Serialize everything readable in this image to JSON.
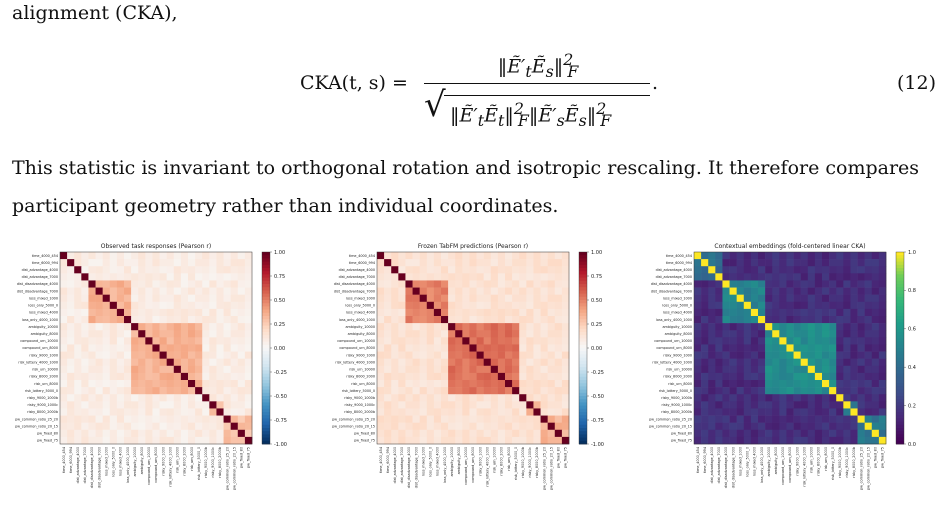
{
  "paragraph_top": "alignment (CKA),",
  "equation": {
    "lhs": "CKA(t, s) =",
    "numerator": "‖Ẽ′ₜẼₛ‖²_F",
    "denominator": "‖Ẽ′ₜẼₜ‖²_F ‖Ẽ′ₛẼₛ‖²_F",
    "number": "(12)"
  },
  "paragraph_lines": [
    "This statistic is invariant to orthogonal rotation and isotropic rescaling. It therefore compares",
    "participant geometry rather than individual coordinates."
  ],
  "labels": [
    "time_4000_454",
    "time_6000_994",
    "dist_advantage_4000",
    "dist_advantage_7000",
    "dist_disadvantage_4000",
    "dist_disadvantage_7000",
    "loss_mixed_1000",
    "loss_only_5000_0",
    "loss_mixed_4000",
    "loss_only_4000_1000",
    "ambiguity_10000",
    "ambiguity_8000",
    "compound_urn_10000",
    "compound_urn_8000",
    "risky_9000_1000",
    "risk_lottery_4000_1000",
    "risk_urn_10000",
    "risky_8000_2000",
    "risk_urn_8000",
    "risk_lottery_5000_0",
    "risky_9000_1000b",
    "risky_9000_1000c",
    "risky_8000_2000b",
    "pw_common_ratio_25_20",
    "pw_common_ratio_20_15",
    "pw_fixed_80",
    "pw_fixed_75"
  ],
  "panels": [
    {
      "title": "Observed task responses (Pearson r)",
      "colormap": "RdBu_r",
      "vmin": -1.0,
      "ticks": [
        "1.00",
        "0.75",
        "0.50",
        "0.25",
        "0.00",
        "-0.25",
        "-0.50",
        "-0.75",
        "-1.00"
      ]
    },
    {
      "title": "Frozen TabFM predictions (Pearson r)",
      "colormap": "RdBu_r",
      "vmin": -1.0,
      "ticks": [
        "1.00",
        "0.75",
        "0.50",
        "0.25",
        "0.00",
        "-0.25",
        "-0.50",
        "-0.75",
        "-1.00"
      ]
    },
    {
      "title": "Contextual embeddings (fold-centered linear CKA)",
      "colormap": "viridis",
      "vmin": 0.0,
      "ticks": [
        "1.0",
        "0.8",
        "0.6",
        "0.4",
        "0.2",
        "0.0"
      ]
    }
  ],
  "chart_data": [
    {
      "type": "heatmap",
      "title": "Observed task responses (Pearson r)",
      "n": 27,
      "zlim": [
        -1,
        1
      ],
      "colormap": "RdBu_r",
      "blocks": [
        {
          "rows": [
            4,
            9
          ],
          "value": 0.35
        },
        {
          "rows": [
            10,
            19
          ],
          "value": 0.35
        },
        {
          "rows": [
            21,
            22
          ],
          "value": 0.3
        },
        {
          "rows": [
            23,
            26
          ],
          "value": 0.3
        }
      ],
      "off_block_value": 0.08,
      "diagonal": 1.0
    },
    {
      "type": "heatmap",
      "title": "Frozen TabFM predictions (Pearson r)",
      "n": 27,
      "zlim": [
        -1,
        1
      ],
      "colormap": "RdBu_r",
      "blocks": [
        {
          "rows": [
            4,
            9
          ],
          "value": 0.5
        },
        {
          "rows": [
            10,
            19
          ],
          "value": 0.55
        },
        {
          "rows": [
            21,
            22
          ],
          "value": 0.35
        },
        {
          "rows": [
            23,
            26
          ],
          "value": 0.35
        }
      ],
      "off_block_value": 0.15,
      "diagonal": 1.0
    },
    {
      "type": "heatmap",
      "title": "Contextual embeddings (fold-centered linear CKA)",
      "n": 27,
      "zlim": [
        0,
        1
      ],
      "colormap": "viridis",
      "blocks": [
        {
          "rows": [
            0,
            3
          ],
          "value": 0.4
        },
        {
          "rows": [
            4,
            9
          ],
          "value": 0.5
        },
        {
          "rows": [
            10,
            19
          ],
          "value": 0.55
        },
        {
          "rows": [
            21,
            22
          ],
          "value": 0.45
        },
        {
          "rows": [
            23,
            26
          ],
          "value": 0.45
        }
      ],
      "off_block_value": 0.15,
      "diagonal": 1.0
    }
  ]
}
